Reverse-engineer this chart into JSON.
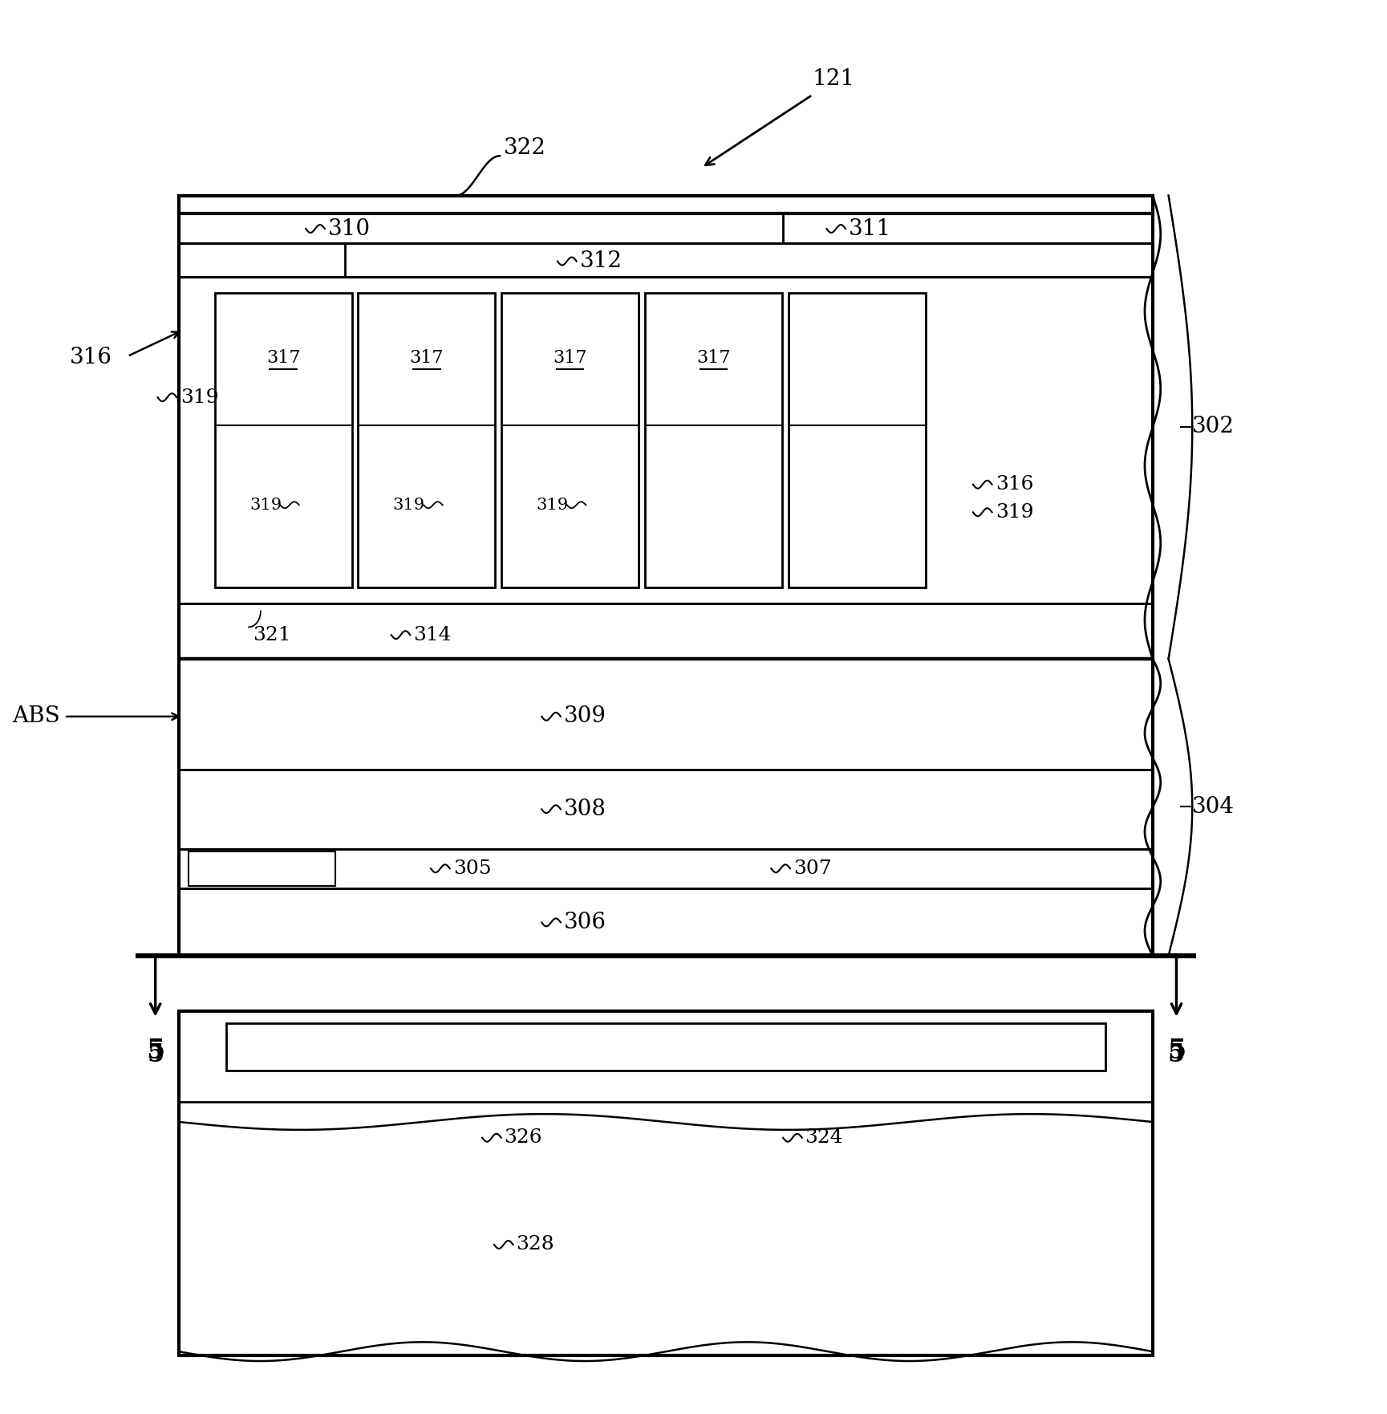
{
  "bg_color": "#ffffff",
  "line_color": "#000000",
  "fig_width": 17.29,
  "fig_height": 17.62,
  "dpi": 100
}
